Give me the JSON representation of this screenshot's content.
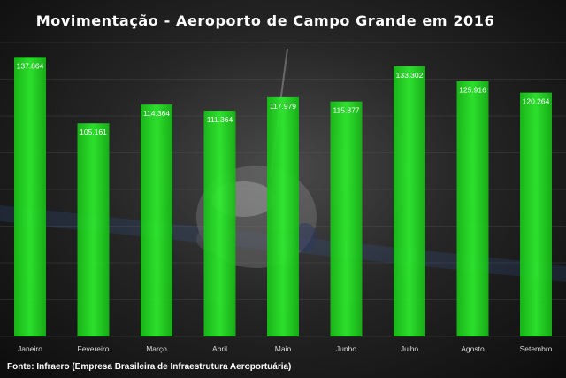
{
  "chart_data": {
    "type": "bar",
    "title": "Movimentação  - Aeroporto  de  Campo  Grande  em  2016",
    "categories": [
      "Janeiro",
      "Fevereiro",
      "Março",
      "Abril",
      "Maio",
      "Junho",
      "Julho",
      "Agosto",
      "Setembro"
    ],
    "values": [
      137864,
      105161,
      114364,
      111364,
      117979,
      115877,
      133302,
      125916,
      120264
    ],
    "value_labels": [
      "137.864",
      "105.161",
      "114.364",
      "111.364",
      "117.979",
      "115.877",
      "133.302",
      "125.916",
      "120.264"
    ],
    "xlabel": "",
    "ylabel": "",
    "ylim": [
      0,
      145000
    ],
    "grid": true,
    "bar_color": "#22dd22",
    "source": "Fonte: Infraero (Empresa Brasileira de Infraestrutura Aeroportuária)"
  }
}
